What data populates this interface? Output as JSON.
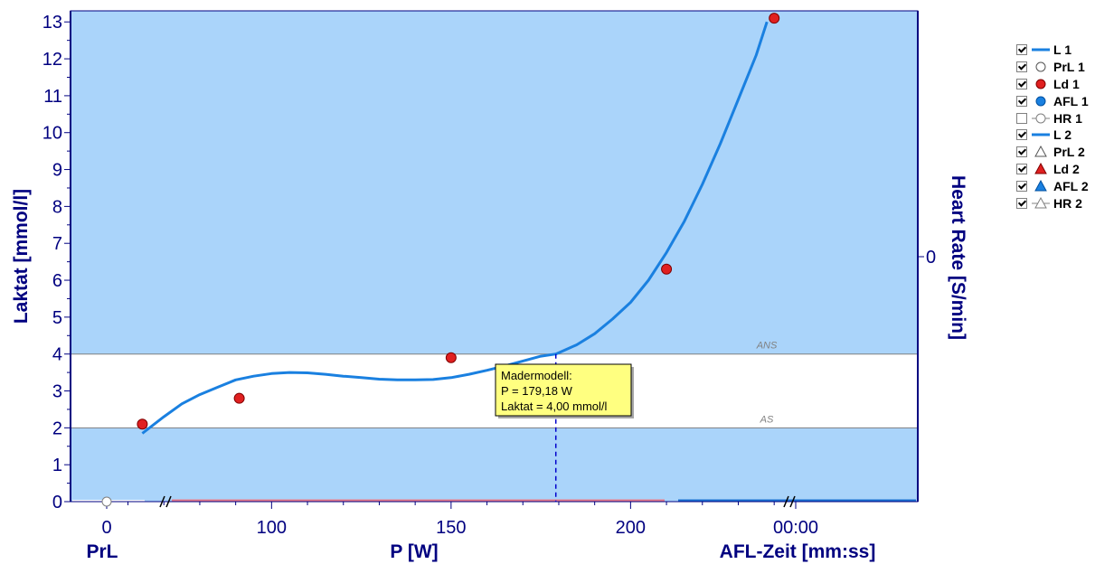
{
  "chart_data": {
    "type": "line",
    "x_axis": {
      "label": "P [W]",
      "ticks": [
        100,
        150,
        200
      ],
      "range": [
        44,
        280
      ]
    },
    "y_axis": {
      "label": "Laktat [mmol/l]",
      "range": [
        0,
        13.3
      ],
      "ticks": [
        0,
        1,
        2,
        3,
        4,
        5,
        6,
        7,
        8,
        9,
        10,
        11,
        12,
        13
      ]
    },
    "y2_axis": {
      "label": "Heart Rate [S/min]",
      "ticks": [
        0
      ]
    },
    "prl_axis": {
      "label": "PrL",
      "ticks": [
        "0"
      ],
      "prl_value": 0
    },
    "afl_axis": {
      "label": "AFL-Zeit [mm:ss]",
      "ticks": [
        "00:00"
      ]
    },
    "bands": [
      {
        "label": "ANS",
        "y": 4
      },
      {
        "label": "AS",
        "y": 2
      }
    ],
    "series": [
      {
        "name": "L 1",
        "kind": "line",
        "color": "#1a80e0",
        "x": [
          64,
          70,
          75,
          80,
          85,
          90,
          95,
          100,
          105,
          110,
          115,
          120,
          125,
          130,
          135,
          140,
          145,
          150,
          155,
          160,
          165,
          170,
          175,
          179.18,
          185,
          190,
          195,
          200,
          205,
          210,
          215,
          220,
          225,
          230,
          235,
          238
        ],
        "y": [
          1.85,
          2.3,
          2.65,
          2.9,
          3.1,
          3.3,
          3.4,
          3.47,
          3.5,
          3.49,
          3.45,
          3.4,
          3.36,
          3.32,
          3.3,
          3.3,
          3.31,
          3.36,
          3.45,
          3.56,
          3.68,
          3.81,
          3.94,
          4.0,
          4.25,
          4.55,
          4.95,
          5.4,
          6.0,
          6.75,
          7.6,
          8.6,
          9.7,
          10.9,
          12.1,
          13.0
        ]
      },
      {
        "name": "Ld 1",
        "kind": "points",
        "color": "#e02020",
        "x": [
          64,
          91,
          150,
          210,
          240
        ],
        "y": [
          2.1,
          2.8,
          3.9,
          6.3,
          13.1
        ]
      }
    ],
    "legend": {
      "position": "right",
      "entries": [
        {
          "label": "L 1",
          "checked": true,
          "symbol": "line-blue"
        },
        {
          "label": "PrL 1",
          "checked": true,
          "symbol": "circle-open"
        },
        {
          "label": "Ld 1",
          "checked": true,
          "symbol": "circle-red"
        },
        {
          "label": "AFL 1",
          "checked": true,
          "symbol": "circle-blue"
        },
        {
          "label": "HR 1",
          "checked": false,
          "symbol": "circle-line"
        },
        {
          "label": "L 2",
          "checked": true,
          "symbol": "line-blue"
        },
        {
          "label": "PrL 2",
          "checked": true,
          "symbol": "triangle-open"
        },
        {
          "label": "Ld 2",
          "checked": true,
          "symbol": "triangle-red"
        },
        {
          "label": "AFL 2",
          "checked": true,
          "symbol": "triangle-blue"
        },
        {
          "label": "HR 2",
          "checked": true,
          "symbol": "triangle-line"
        }
      ]
    },
    "tooltip": {
      "lines": [
        "Madermodell:",
        "P = 179,18 W",
        "Laktat = 4,00 mmol/l"
      ],
      "x": 179.18,
      "y": 4.0
    },
    "colors": {
      "plot_bg": "#aad4fa",
      "band_bg": "#ffffff",
      "axis": "#000080",
      "tooltip_bg": "#ffff80"
    }
  }
}
